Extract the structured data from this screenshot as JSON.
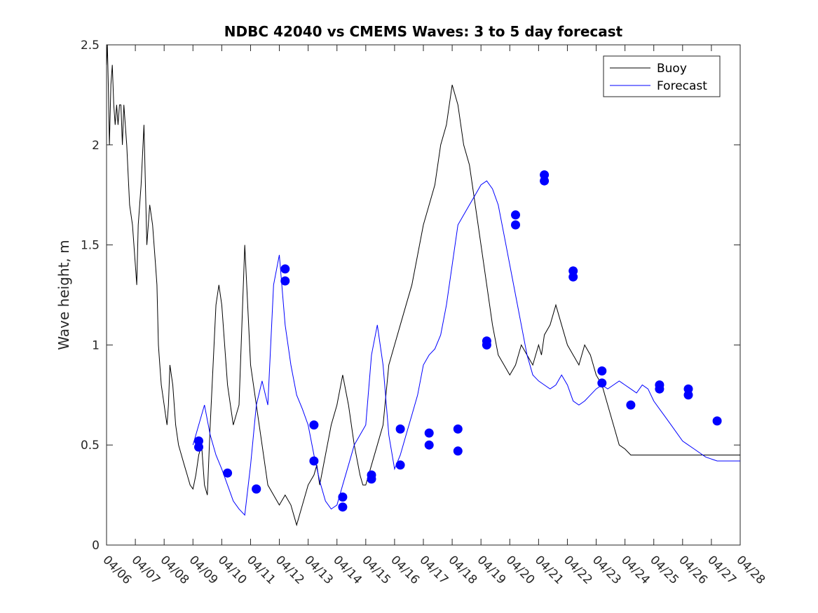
{
  "chart_data": {
    "type": "line",
    "title": "NDBC 42040 vs CMEMS Waves: 3 to 5 day forecast",
    "xlabel": "",
    "ylabel": "Wave height, m",
    "ylim": [
      0,
      2.5
    ],
    "yticks": [
      "0",
      "0.5",
      "1",
      "1.5",
      "2",
      "2.5"
    ],
    "xlim": [
      0,
      22
    ],
    "xticks": [
      "04/06",
      "04/07",
      "04/08",
      "04/09",
      "04/10",
      "04/11",
      "04/12",
      "04/13",
      "04/14",
      "04/15",
      "04/16",
      "04/17",
      "04/18",
      "04/19",
      "04/20",
      "04/21",
      "04/22",
      "04/23",
      "04/24",
      "04/25",
      "04/26",
      "04/27",
      "04/28"
    ],
    "grid": false,
    "legend": {
      "location": "top-right",
      "entries": [
        "Buoy",
        "Forecast"
      ]
    },
    "colors": {
      "buoy": "#000000",
      "forecast": "#0000ff"
    },
    "series": [
      {
        "name": "Buoy",
        "x": [
          0,
          0.03,
          0.06,
          0.1,
          0.15,
          0.2,
          0.25,
          0.3,
          0.35,
          0.4,
          0.45,
          0.5,
          0.55,
          0.6,
          0.7,
          0.8,
          0.9,
          1.0,
          1.05,
          1.1,
          1.2,
          1.3,
          1.4,
          1.5,
          1.6,
          1.7,
          1.75,
          1.8,
          1.85,
          1.9,
          2.0,
          2.05,
          2.1,
          2.15,
          2.2,
          2.3,
          2.4,
          2.5,
          2.6,
          2.7,
          2.8,
          2.9,
          3.0,
          3.1,
          3.2,
          3.3,
          3.4,
          3.5,
          3.6,
          3.7,
          3.8,
          3.9,
          4.0,
          4.2,
          4.4,
          4.6,
          4.8,
          5.0,
          5.2,
          5.4,
          5.6,
          5.8,
          6.0,
          6.2,
          6.4,
          6.5,
          6.6,
          6.8,
          7.0,
          7.2,
          7.3,
          7.4,
          7.6,
          7.8,
          8.0,
          8.2,
          8.4,
          8.6,
          8.8,
          8.9,
          9.0,
          9.2,
          9.4,
          9.6,
          9.8,
          10.0,
          10.2,
          10.4,
          10.6,
          10.8,
          11.0,
          11.2,
          11.4,
          11.6,
          11.8,
          12.0,
          12.2,
          12.4,
          12.6,
          12.8,
          13.0,
          13.2,
          13.4,
          13.6,
          13.8,
          14.0,
          14.2,
          14.4,
          14.6,
          14.8,
          15.0,
          15.1,
          15.2,
          15.4,
          15.6,
          15.8,
          16.0,
          16.2,
          16.4,
          16.6,
          16.8,
          17.0,
          17.2,
          17.4,
          17.6,
          17.8,
          18.0,
          18.2,
          18.4,
          18.6,
          18.8,
          19.0,
          19.2,
          19.4,
          19.6,
          19.8,
          20.0,
          20.2,
          20.4,
          20.6,
          20.8,
          21.0,
          21.2,
          21.4,
          21.6,
          21.8,
          22.0
        ],
        "y": [
          2.4,
          2.5,
          2.3,
          2.0,
          2.3,
          2.4,
          2.2,
          2.1,
          2.2,
          2.1,
          2.2,
          2.2,
          2.0,
          2.2,
          2.0,
          1.7,
          1.6,
          1.4,
          1.3,
          1.6,
          1.8,
          2.1,
          1.5,
          1.7,
          1.6,
          1.4,
          1.3,
          1.0,
          0.9,
          0.8,
          0.7,
          0.65,
          0.6,
          0.7,
          0.9,
          0.8,
          0.6,
          0.5,
          0.45,
          0.4,
          0.35,
          0.3,
          0.28,
          0.35,
          0.45,
          0.5,
          0.3,
          0.25,
          0.6,
          0.9,
          1.2,
          1.3,
          1.2,
          0.8,
          0.6,
          0.7,
          1.5,
          0.9,
          0.7,
          0.5,
          0.3,
          0.25,
          0.2,
          0.25,
          0.2,
          0.15,
          0.1,
          0.2,
          0.3,
          0.35,
          0.4,
          0.3,
          0.45,
          0.6,
          0.7,
          0.85,
          0.7,
          0.5,
          0.35,
          0.3,
          0.3,
          0.4,
          0.5,
          0.6,
          0.9,
          1.0,
          1.1,
          1.2,
          1.3,
          1.45,
          1.6,
          1.7,
          1.8,
          2.0,
          2.1,
          2.3,
          2.2,
          2.0,
          1.9,
          1.7,
          1.5,
          1.3,
          1.1,
          0.95,
          0.9,
          0.85,
          0.9,
          1.0,
          0.95,
          0.9,
          1.0,
          0.95,
          1.05,
          1.1,
          1.2,
          1.1,
          1.0,
          0.95,
          0.9,
          1.0,
          0.95,
          0.85,
          0.8,
          0.7,
          0.6,
          0.5,
          0.48,
          0.45,
          0.45,
          0.45,
          0.45,
          0.45,
          0.45,
          0.45,
          0.45,
          0.45,
          0.45,
          0.45,
          0.45,
          0.45,
          0.45,
          0.45,
          0.45,
          0.45,
          0.45,
          0.45,
          0.45
        ]
      },
      {
        "name": "Forecast",
        "x": [
          3.0,
          3.2,
          3.4,
          3.6,
          3.8,
          4.0,
          4.2,
          4.4,
          4.6,
          4.8,
          5.0,
          5.2,
          5.4,
          5.6,
          5.8,
          6.0,
          6.2,
          6.4,
          6.6,
          6.8,
          7.0,
          7.2,
          7.4,
          7.6,
          7.8,
          8.0,
          8.2,
          8.4,
          8.6,
          8.8,
          9.0,
          9.2,
          9.4,
          9.6,
          9.8,
          10.0,
          10.2,
          10.4,
          10.6,
          10.8,
          11.0,
          11.2,
          11.4,
          11.6,
          11.8,
          12.0,
          12.2,
          12.4,
          12.6,
          12.8,
          13.0,
          13.2,
          13.4,
          13.6,
          13.8,
          14.0,
          14.2,
          14.4,
          14.6,
          14.8,
          15.0,
          15.2,
          15.4,
          15.6,
          15.8,
          16.0,
          16.2,
          16.4,
          16.6,
          16.8,
          17.0,
          17.2,
          17.4,
          17.6,
          17.8,
          18.0,
          18.2,
          18.4,
          18.6,
          18.8,
          19.0,
          19.2,
          19.4,
          19.6,
          19.8,
          20.0,
          20.2,
          20.4,
          20.6,
          20.8,
          21.0,
          21.2,
          21.4,
          21.6,
          21.8,
          22.0
        ],
        "y": [
          0.5,
          0.6,
          0.7,
          0.55,
          0.45,
          0.38,
          0.3,
          0.22,
          0.18,
          0.15,
          0.4,
          0.7,
          0.82,
          0.7,
          1.3,
          1.45,
          1.1,
          0.9,
          0.75,
          0.68,
          0.6,
          0.45,
          0.32,
          0.22,
          0.18,
          0.2,
          0.3,
          0.4,
          0.5,
          0.55,
          0.6,
          0.95,
          1.1,
          0.9,
          0.55,
          0.38,
          0.45,
          0.55,
          0.65,
          0.75,
          0.9,
          0.95,
          0.98,
          1.05,
          1.2,
          1.4,
          1.6,
          1.65,
          1.7,
          1.75,
          1.8,
          1.82,
          1.78,
          1.7,
          1.55,
          1.4,
          1.25,
          1.1,
          0.95,
          0.85,
          0.82,
          0.8,
          0.78,
          0.8,
          0.85,
          0.8,
          0.72,
          0.7,
          0.72,
          0.75,
          0.78,
          0.8,
          0.78,
          0.8,
          0.82,
          0.8,
          0.78,
          0.76,
          0.8,
          0.78,
          0.72,
          0.68,
          0.64,
          0.6,
          0.56,
          0.52,
          0.5,
          0.48,
          0.46,
          0.44,
          0.43,
          0.42,
          0.42,
          0.42,
          0.42,
          0.42
        ],
        "markers": {
          "x": [
            3.2,
            3.2,
            4.2,
            5.2,
            5.2,
            6.2,
            6.2,
            7.2,
            7.2,
            8.2,
            8.2,
            9.2,
            9.2,
            10.2,
            10.2,
            11.2,
            11.2,
            12.2,
            12.2,
            13.2,
            13.2,
            14.2,
            14.2,
            15.2,
            15.2,
            16.2,
            16.2,
            17.2,
            17.2,
            18.2,
            19.2,
            19.2,
            20.2,
            20.2,
            21.2
          ],
          "y": [
            0.52,
            0.49,
            0.36,
            0.28,
            0.28,
            1.38,
            1.32,
            0.6,
            0.42,
            0.24,
            0.19,
            0.35,
            0.33,
            0.58,
            0.4,
            0.56,
            0.5,
            0.58,
            0.47,
            1.02,
            1.0,
            1.65,
            1.6,
            1.85,
            1.82,
            1.37,
            1.34,
            0.87,
            0.81,
            0.7,
            0.8,
            0.78,
            0.78,
            0.75,
            0.62
          ]
        }
      }
    ]
  }
}
